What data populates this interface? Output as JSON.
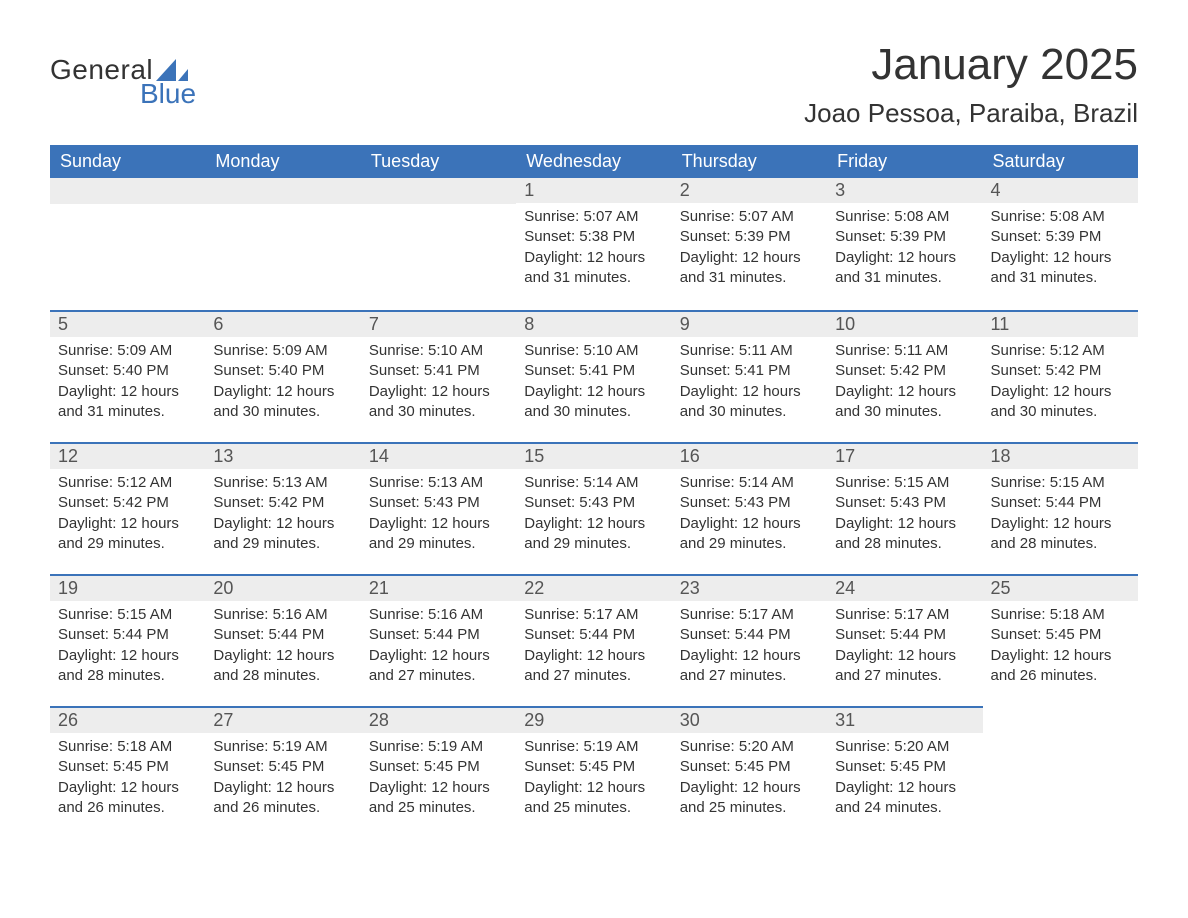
{
  "logo": {
    "text1": "General",
    "text2": "Blue",
    "shape_color": "#3b73b9"
  },
  "title": "January 2025",
  "location": "Joao Pessoa, Paraiba, Brazil",
  "colors": {
    "header_bg": "#3b73b9",
    "header_text": "#ffffff",
    "daynum_bg": "#ededed",
    "row_border": "#3b73b9",
    "body_text": "#333333",
    "page_bg": "#ffffff"
  },
  "typography": {
    "title_fontsize": 44,
    "location_fontsize": 26,
    "dayheader_fontsize": 18,
    "daynum_fontsize": 18,
    "body_fontsize": 15,
    "font_family": "Arial"
  },
  "day_headers": [
    "Sunday",
    "Monday",
    "Tuesday",
    "Wednesday",
    "Thursday",
    "Friday",
    "Saturday"
  ],
  "weeks": [
    [
      null,
      null,
      null,
      {
        "num": "1",
        "sunrise": "Sunrise: 5:07 AM",
        "sunset": "Sunset: 5:38 PM",
        "daylight": "Daylight: 12 hours and 31 minutes."
      },
      {
        "num": "2",
        "sunrise": "Sunrise: 5:07 AM",
        "sunset": "Sunset: 5:39 PM",
        "daylight": "Daylight: 12 hours and 31 minutes."
      },
      {
        "num": "3",
        "sunrise": "Sunrise: 5:08 AM",
        "sunset": "Sunset: 5:39 PM",
        "daylight": "Daylight: 12 hours and 31 minutes."
      },
      {
        "num": "4",
        "sunrise": "Sunrise: 5:08 AM",
        "sunset": "Sunset: 5:39 PM",
        "daylight": "Daylight: 12 hours and 31 minutes."
      }
    ],
    [
      {
        "num": "5",
        "sunrise": "Sunrise: 5:09 AM",
        "sunset": "Sunset: 5:40 PM",
        "daylight": "Daylight: 12 hours and 31 minutes."
      },
      {
        "num": "6",
        "sunrise": "Sunrise: 5:09 AM",
        "sunset": "Sunset: 5:40 PM",
        "daylight": "Daylight: 12 hours and 30 minutes."
      },
      {
        "num": "7",
        "sunrise": "Sunrise: 5:10 AM",
        "sunset": "Sunset: 5:41 PM",
        "daylight": "Daylight: 12 hours and 30 minutes."
      },
      {
        "num": "8",
        "sunrise": "Sunrise: 5:10 AM",
        "sunset": "Sunset: 5:41 PM",
        "daylight": "Daylight: 12 hours and 30 minutes."
      },
      {
        "num": "9",
        "sunrise": "Sunrise: 5:11 AM",
        "sunset": "Sunset: 5:41 PM",
        "daylight": "Daylight: 12 hours and 30 minutes."
      },
      {
        "num": "10",
        "sunrise": "Sunrise: 5:11 AM",
        "sunset": "Sunset: 5:42 PM",
        "daylight": "Daylight: 12 hours and 30 minutes."
      },
      {
        "num": "11",
        "sunrise": "Sunrise: 5:12 AM",
        "sunset": "Sunset: 5:42 PM",
        "daylight": "Daylight: 12 hours and 30 minutes."
      }
    ],
    [
      {
        "num": "12",
        "sunrise": "Sunrise: 5:12 AM",
        "sunset": "Sunset: 5:42 PM",
        "daylight": "Daylight: 12 hours and 29 minutes."
      },
      {
        "num": "13",
        "sunrise": "Sunrise: 5:13 AM",
        "sunset": "Sunset: 5:42 PM",
        "daylight": "Daylight: 12 hours and 29 minutes."
      },
      {
        "num": "14",
        "sunrise": "Sunrise: 5:13 AM",
        "sunset": "Sunset: 5:43 PM",
        "daylight": "Daylight: 12 hours and 29 minutes."
      },
      {
        "num": "15",
        "sunrise": "Sunrise: 5:14 AM",
        "sunset": "Sunset: 5:43 PM",
        "daylight": "Daylight: 12 hours and 29 minutes."
      },
      {
        "num": "16",
        "sunrise": "Sunrise: 5:14 AM",
        "sunset": "Sunset: 5:43 PM",
        "daylight": "Daylight: 12 hours and 29 minutes."
      },
      {
        "num": "17",
        "sunrise": "Sunrise: 5:15 AM",
        "sunset": "Sunset: 5:43 PM",
        "daylight": "Daylight: 12 hours and 28 minutes."
      },
      {
        "num": "18",
        "sunrise": "Sunrise: 5:15 AM",
        "sunset": "Sunset: 5:44 PM",
        "daylight": "Daylight: 12 hours and 28 minutes."
      }
    ],
    [
      {
        "num": "19",
        "sunrise": "Sunrise: 5:15 AM",
        "sunset": "Sunset: 5:44 PM",
        "daylight": "Daylight: 12 hours and 28 minutes."
      },
      {
        "num": "20",
        "sunrise": "Sunrise: 5:16 AM",
        "sunset": "Sunset: 5:44 PM",
        "daylight": "Daylight: 12 hours and 28 minutes."
      },
      {
        "num": "21",
        "sunrise": "Sunrise: 5:16 AM",
        "sunset": "Sunset: 5:44 PM",
        "daylight": "Daylight: 12 hours and 27 minutes."
      },
      {
        "num": "22",
        "sunrise": "Sunrise: 5:17 AM",
        "sunset": "Sunset: 5:44 PM",
        "daylight": "Daylight: 12 hours and 27 minutes."
      },
      {
        "num": "23",
        "sunrise": "Sunrise: 5:17 AM",
        "sunset": "Sunset: 5:44 PM",
        "daylight": "Daylight: 12 hours and 27 minutes."
      },
      {
        "num": "24",
        "sunrise": "Sunrise: 5:17 AM",
        "sunset": "Sunset: 5:44 PM",
        "daylight": "Daylight: 12 hours and 27 minutes."
      },
      {
        "num": "25",
        "sunrise": "Sunrise: 5:18 AM",
        "sunset": "Sunset: 5:45 PM",
        "daylight": "Daylight: 12 hours and 26 minutes."
      }
    ],
    [
      {
        "num": "26",
        "sunrise": "Sunrise: 5:18 AM",
        "sunset": "Sunset: 5:45 PM",
        "daylight": "Daylight: 12 hours and 26 minutes."
      },
      {
        "num": "27",
        "sunrise": "Sunrise: 5:19 AM",
        "sunset": "Sunset: 5:45 PM",
        "daylight": "Daylight: 12 hours and 26 minutes."
      },
      {
        "num": "28",
        "sunrise": "Sunrise: 5:19 AM",
        "sunset": "Sunset: 5:45 PM",
        "daylight": "Daylight: 12 hours and 25 minutes."
      },
      {
        "num": "29",
        "sunrise": "Sunrise: 5:19 AM",
        "sunset": "Sunset: 5:45 PM",
        "daylight": "Daylight: 12 hours and 25 minutes."
      },
      {
        "num": "30",
        "sunrise": "Sunrise: 5:20 AM",
        "sunset": "Sunset: 5:45 PM",
        "daylight": "Daylight: 12 hours and 25 minutes."
      },
      {
        "num": "31",
        "sunrise": "Sunrise: 5:20 AM",
        "sunset": "Sunset: 5:45 PM",
        "daylight": "Daylight: 12 hours and 24 minutes."
      },
      null
    ]
  ]
}
